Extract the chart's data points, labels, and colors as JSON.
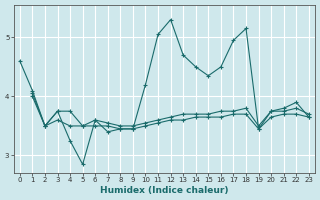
{
  "title": "",
  "xlabel": "Humidex (Indice chaleur)",
  "ylabel": "",
  "bg_color": "#cfe8ec",
  "grid_color": "#ffffff",
  "line_color": "#1a6b6b",
  "xlim": [
    -0.5,
    23.5
  ],
  "ylim": [
    2.7,
    5.55
  ],
  "yticks": [
    3,
    4,
    5
  ],
  "xticks": [
    0,
    1,
    2,
    3,
    4,
    5,
    6,
    7,
    8,
    9,
    10,
    11,
    12,
    13,
    14,
    15,
    16,
    17,
    18,
    19,
    20,
    21,
    22,
    23
  ],
  "series1_x": [
    0,
    1,
    2,
    3,
    4,
    5,
    6,
    7,
    8,
    9,
    10,
    11,
    12,
    13,
    14,
    15,
    16,
    17,
    18,
    19,
    20,
    21,
    22,
    23
  ],
  "series1_y": [
    4.6,
    4.1,
    3.5,
    3.75,
    3.25,
    2.85,
    3.6,
    3.4,
    3.45,
    3.45,
    4.2,
    5.05,
    5.3,
    4.7,
    4.5,
    4.35,
    4.5,
    4.95,
    5.15,
    3.45,
    3.75,
    3.8,
    3.9,
    3.65
  ],
  "series2_x": [
    1,
    2,
    3,
    4,
    5,
    6,
    7,
    8,
    9,
    10,
    11,
    12,
    13,
    14,
    15,
    16,
    17,
    18,
    19,
    20,
    21,
    22,
    23
  ],
  "series2_y": [
    4.05,
    3.5,
    3.75,
    3.75,
    3.5,
    3.6,
    3.55,
    3.5,
    3.5,
    3.55,
    3.6,
    3.65,
    3.7,
    3.7,
    3.7,
    3.75,
    3.75,
    3.8,
    3.5,
    3.75,
    3.75,
    3.8,
    3.7
  ],
  "series3_x": [
    1,
    2,
    3,
    4,
    5,
    6,
    7,
    8,
    9,
    10,
    11,
    12,
    13,
    14,
    15,
    16,
    17,
    18,
    19,
    20,
    21,
    22,
    23
  ],
  "series3_y": [
    4.0,
    3.5,
    3.6,
    3.5,
    3.5,
    3.5,
    3.5,
    3.45,
    3.45,
    3.5,
    3.55,
    3.6,
    3.6,
    3.65,
    3.65,
    3.65,
    3.7,
    3.7,
    3.45,
    3.65,
    3.7,
    3.7,
    3.65
  ]
}
